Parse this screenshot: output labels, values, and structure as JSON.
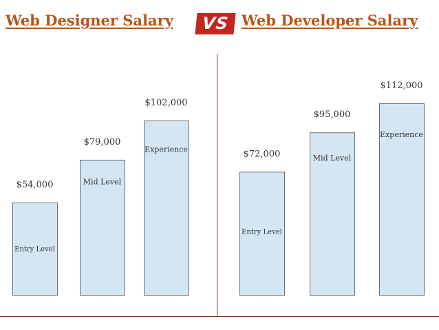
{
  "header": {
    "left_title": "Web Designer Salary",
    "right_title": "Web Developer Salary",
    "vs_label": "VS"
  },
  "colors": {
    "title": "#b5561b",
    "vs_badge": "#c0271e",
    "bar_fill": "#d4e6f4",
    "bar_stroke": "#6d6d6d",
    "divider": "#7b2d23",
    "text": "#333333"
  },
  "chart_data": [
    {
      "type": "bar",
      "title": "Web Designer Salary",
      "categories": [
        "Entry Level",
        "Mid Level",
        "Experience"
      ],
      "values": [
        54000,
        79000,
        102000
      ],
      "value_labels": [
        "$54,000",
        "$79,000",
        "$102,000"
      ]
    },
    {
      "type": "bar",
      "title": "Web Developer Salary",
      "categories": [
        "Entry Level",
        "Mid Level",
        "Experience"
      ],
      "values": [
        72000,
        95000,
        112000
      ],
      "value_labels": [
        "$72,000",
        "$95,000",
        "$112,000"
      ]
    }
  ]
}
